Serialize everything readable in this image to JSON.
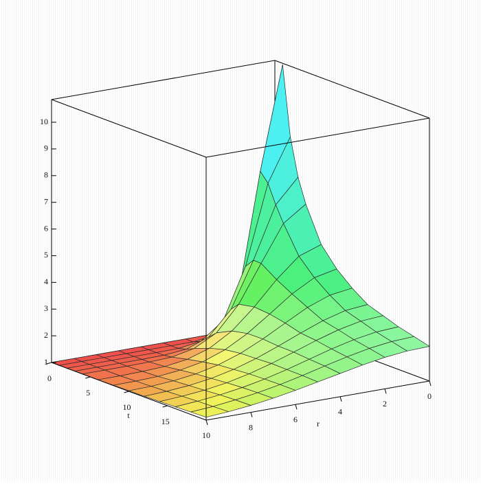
{
  "chart_data": {
    "type": "surface",
    "t_label": "t",
    "r_label": "r",
    "t": [
      0,
      1,
      2,
      3,
      4,
      6,
      8,
      10,
      12,
      14,
      16,
      18,
      20
    ],
    "r": [
      0,
      1,
      2,
      3,
      4,
      5,
      6,
      7,
      8,
      9,
      10
    ],
    "z": [
      [
        1,
        1,
        1,
        1,
        1,
        1,
        1,
        1,
        1,
        1,
        1
      ],
      [
        10.8,
        6.95,
        2.33,
        1.11,
        1.0,
        1,
        1,
        1,
        1,
        1,
        1
      ],
      [
        8.2,
        6.61,
        3.65,
        1.76,
        1.13,
        1.01,
        1,
        1,
        1,
        1,
        1
      ],
      [
        6.8,
        5.91,
        3.98,
        2.29,
        1.4,
        1.09,
        1.01,
        1,
        1,
        1,
        1
      ],
      [
        5.9,
        5.32,
        3.97,
        2.59,
        1.66,
        1.22,
        1.05,
        1.01,
        1,
        1,
        1
      ],
      [
        4.6,
        4.31,
        3.58,
        2.7,
        1.95,
        1.45,
        1.18,
        1.06,
        1.02,
        1.0,
        1
      ],
      [
        3.9,
        3.72,
        3.26,
        2.65,
        2.07,
        1.61,
        1.3,
        1.14,
        1.05,
        1.02,
        1.01
      ],
      [
        3.4,
        3.28,
        2.97,
        2.53,
        2.08,
        1.69,
        1.4,
        1.21,
        1.1,
        1.04,
        1.02
      ],
      [
        3.0,
        2.92,
        2.69,
        2.37,
        2.03,
        1.71,
        1.45,
        1.26,
        1.14,
        1.07,
        1.03
      ],
      [
        2.8,
        2.74,
        2.56,
        2.31,
        2.02,
        1.74,
        1.5,
        1.31,
        1.18,
        1.1,
        1.05
      ],
      [
        2.6,
        2.55,
        2.41,
        2.21,
        1.97,
        1.73,
        1.52,
        1.35,
        1.22,
        1.13,
        1.07
      ],
      [
        2.45,
        2.41,
        2.3,
        2.13,
        1.93,
        1.72,
        1.53,
        1.37,
        1.25,
        1.15,
        1.09
      ],
      [
        2.3,
        2.27,
        2.18,
        2.04,
        1.87,
        1.7,
        1.53,
        1.38,
        1.26,
        1.17,
        1.11
      ]
    ],
    "tlim": [
      0,
      20
    ],
    "tticks": [
      0,
      5,
      10,
      15
    ],
    "rlim": [
      0,
      10
    ],
    "rticks": [
      0,
      2,
      4,
      6,
      8,
      10
    ],
    "zlim": [
      1,
      10.85
    ],
    "zticks": [
      1,
      2,
      3,
      4,
      5,
      6,
      7,
      8,
      9,
      10
    ]
  }
}
